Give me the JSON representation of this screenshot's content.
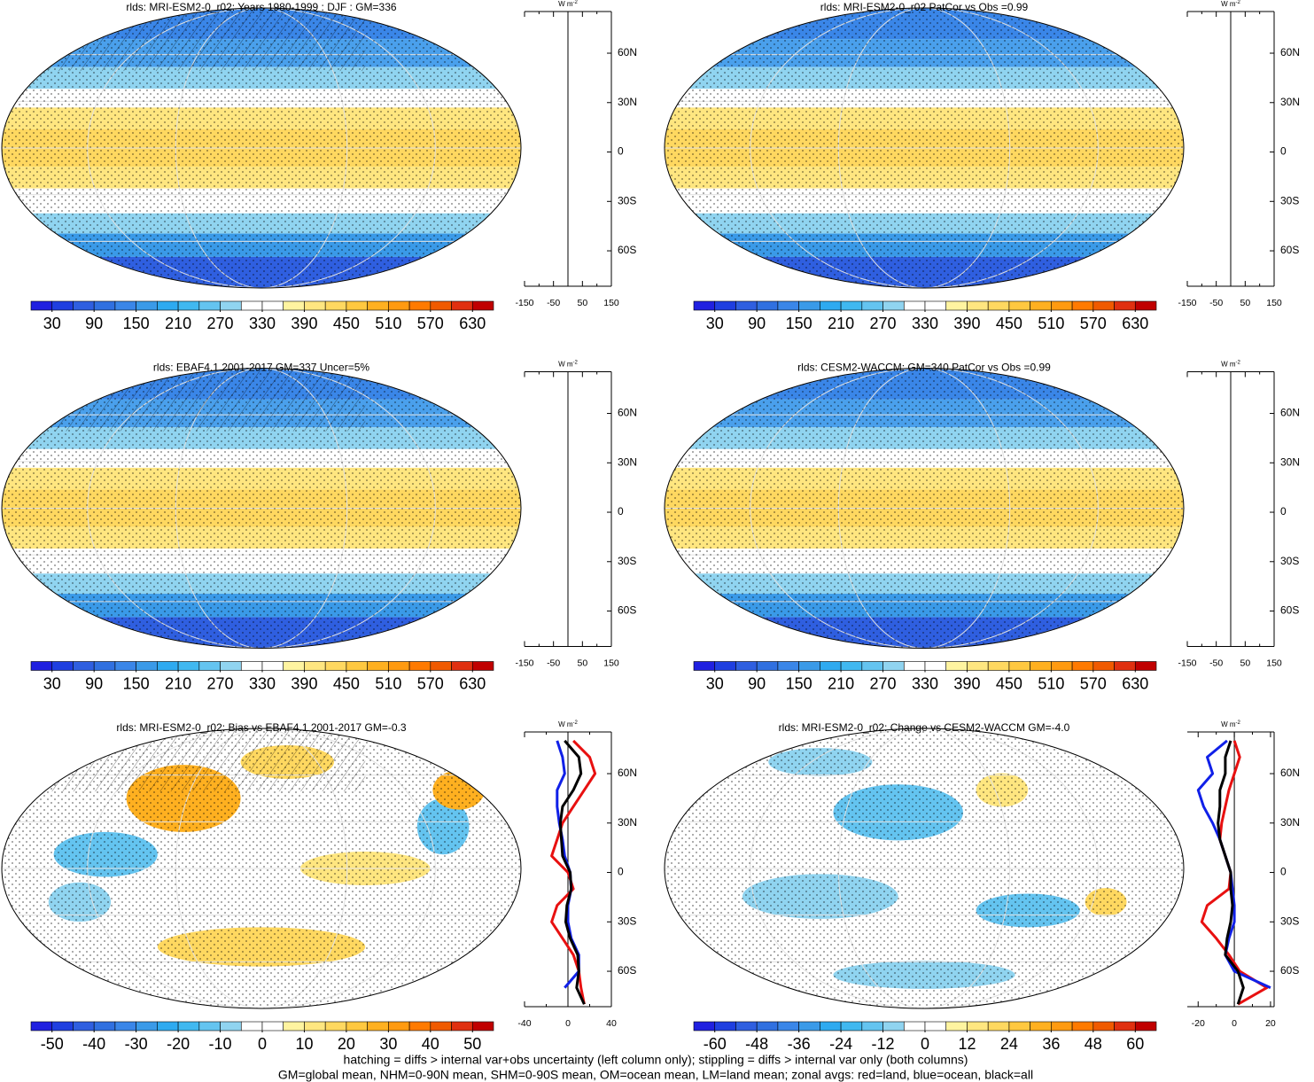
{
  "chart_data": [
    {
      "type": "map",
      "title": "rlds: MRI-ESM2-0_r02: Years 1980-1999 : DJF : GM=336",
      "colorbar": {
        "lim": [
          0,
          660
        ],
        "ticks": [
          30,
          90,
          150,
          210,
          270,
          330,
          390,
          450,
          510,
          570,
          630
        ],
        "colors": [
          "#2020e0",
          "#1f3fe0",
          "#2f5fe0",
          "#3070e0",
          "#3a86e8",
          "#3a9ae8",
          "#2eaaf0",
          "#40b8f0",
          "#64c4f0",
          "#90d4f0",
          "#ffffff",
          "#ffffff",
          "#fff4a0",
          "#ffe680",
          "#ffd860",
          "#ffc840",
          "#ffb020",
          "#ff9a10",
          "#ff7a00",
          "#f05a00",
          "#e03010",
          "#c00000"
        ]
      },
      "profile": {
        "type": "line",
        "unit": "W m",
        "unit_exp": "-2",
        "xlim": [
          -150,
          150
        ],
        "xticks": [
          -150,
          -50,
          50,
          150
        ],
        "ylim": [
          -81.5,
          85.3
        ],
        "yticks": [
          {
            "value": 60,
            "label": "60N"
          },
          {
            "value": 30,
            "label": "30N"
          },
          0,
          {
            "value": -30,
            "label": "30S"
          },
          {
            "value": -60,
            "label": "60S"
          }
        ]
      }
    },
    {
      "type": "map",
      "title": "rlds: MRI-ESM2-0_r02 PatCor vs Obs =0.99",
      "colorbar": {
        "lim": [
          0,
          660
        ],
        "ticks": [
          30,
          90,
          150,
          210,
          270,
          330,
          390,
          450,
          510,
          570,
          630
        ],
        "colors": [
          "#2020e0",
          "#1f3fe0",
          "#2f5fe0",
          "#3070e0",
          "#3a86e8",
          "#3a9ae8",
          "#2eaaf0",
          "#40b8f0",
          "#64c4f0",
          "#90d4f0",
          "#ffffff",
          "#ffffff",
          "#fff4a0",
          "#ffe680",
          "#ffd860",
          "#ffc840",
          "#ffb020",
          "#ff9a10",
          "#ff7a00",
          "#f05a00",
          "#e03010",
          "#c00000"
        ]
      },
      "profile": {
        "type": "line",
        "unit": "W m",
        "unit_exp": "-2",
        "xlim": [
          -150,
          150
        ],
        "xticks": [
          -150,
          -50,
          50,
          150
        ],
        "ylim": [
          -81.5,
          85.3
        ],
        "yticks": [
          {
            "value": 60,
            "label": "60N"
          },
          {
            "value": 30,
            "label": "30N"
          },
          0,
          {
            "value": -30,
            "label": "30S"
          },
          {
            "value": -60,
            "label": "60S"
          }
        ]
      }
    },
    {
      "type": "map",
      "title": "rlds: EBAF4.1 2001-2017 GM=337 Uncer=5%",
      "colorbar": {
        "lim": [
          0,
          660
        ],
        "ticks": [
          30,
          90,
          150,
          210,
          270,
          330,
          390,
          450,
          510,
          570,
          630
        ],
        "colors": [
          "#2020e0",
          "#1f3fe0",
          "#2f5fe0",
          "#3070e0",
          "#3a86e8",
          "#3a9ae8",
          "#2eaaf0",
          "#40b8f0",
          "#64c4f0",
          "#90d4f0",
          "#ffffff",
          "#ffffff",
          "#fff4a0",
          "#ffe680",
          "#ffd860",
          "#ffc840",
          "#ffb020",
          "#ff9a10",
          "#ff7a00",
          "#f05a00",
          "#e03010",
          "#c00000"
        ]
      },
      "profile": {
        "type": "line",
        "unit": "W m",
        "unit_exp": "-2",
        "xlim": [
          -150,
          150
        ],
        "xticks": [
          -150,
          -50,
          50,
          150
        ],
        "ylim": [
          -81.5,
          85.3
        ],
        "yticks": [
          {
            "value": 60,
            "label": "60N"
          },
          {
            "value": 30,
            "label": "30N"
          },
          0,
          {
            "value": -30,
            "label": "30S"
          },
          {
            "value": -60,
            "label": "60S"
          }
        ]
      }
    },
    {
      "type": "map",
      "title": "rlds: CESM2-WACCM: GM=340 PatCor vs Obs =0.99",
      "colorbar": {
        "lim": [
          0,
          660
        ],
        "ticks": [
          30,
          90,
          150,
          210,
          270,
          330,
          390,
          450,
          510,
          570,
          630
        ],
        "colors": [
          "#2020e0",
          "#1f3fe0",
          "#2f5fe0",
          "#3070e0",
          "#3a86e8",
          "#3a9ae8",
          "#2eaaf0",
          "#40b8f0",
          "#64c4f0",
          "#90d4f0",
          "#ffffff",
          "#ffffff",
          "#fff4a0",
          "#ffe680",
          "#ffd860",
          "#ffc840",
          "#ffb020",
          "#ff9a10",
          "#ff7a00",
          "#f05a00",
          "#e03010",
          "#c00000"
        ]
      },
      "profile": {
        "type": "line",
        "unit": "W m",
        "unit_exp": "-2",
        "xlim": [
          -150,
          150
        ],
        "xticks": [
          -150,
          -50,
          50,
          150
        ],
        "ylim": [
          -81.5,
          85.3
        ],
        "yticks": [
          {
            "value": 60,
            "label": "60N"
          },
          {
            "value": 30,
            "label": "30N"
          },
          0,
          {
            "value": -30,
            "label": "30S"
          },
          {
            "value": -60,
            "label": "60S"
          }
        ]
      }
    },
    {
      "type": "map",
      "title": "rlds: MRI-ESM2-0_r02: Bias vs EBAF4.1 2001-2017 GM=-0.3",
      "colorbar": {
        "lim": [
          -55,
          55
        ],
        "ticks": [
          -50,
          -40,
          -30,
          -20,
          -10,
          0,
          10,
          20,
          30,
          40,
          50
        ],
        "colors": [
          "#2020e0",
          "#1f3fe0",
          "#2f5fe0",
          "#3070e0",
          "#3a86e8",
          "#3a9ae8",
          "#2eaaf0",
          "#40b8f0",
          "#64c4f0",
          "#90d4f0",
          "#ffffff",
          "#ffffff",
          "#fff4a0",
          "#ffe680",
          "#ffd860",
          "#ffc840",
          "#ffb020",
          "#ff9a10",
          "#ff7a00",
          "#f05a00",
          "#e03010",
          "#c00000"
        ]
      },
      "profile": {
        "type": "line",
        "unit": "W m",
        "unit_exp": "-2",
        "xlim": [
          -40,
          40
        ],
        "xticks": [
          -40,
          0,
          40
        ],
        "ylim": [
          -81.5,
          85.3
        ],
        "yticks": [
          {
            "value": 60,
            "label": "60N"
          },
          {
            "value": 30,
            "label": "30N"
          },
          0,
          {
            "value": -30,
            "label": "30S"
          },
          {
            "value": -60,
            "label": "60S"
          }
        ],
        "lat": [
          -80,
          -70,
          -60,
          -50,
          -40,
          -30,
          -20,
          -10,
          0,
          10,
          20,
          30,
          40,
          50,
          60,
          70,
          80
        ],
        "series": [
          {
            "color": "#e81010",
            "values": [
              15,
              12,
              10,
              5,
              -5,
              -15,
              -10,
              5,
              0,
              -15,
              -10,
              -5,
              5,
              15,
              25,
              20,
              5
            ]
          },
          {
            "color": "#1020e8",
            "values": [
              null,
              -3,
              10,
              10,
              3,
              0,
              0,
              3,
              2,
              -3,
              -5,
              -8,
              -10,
              -10,
              -3,
              -5,
              -10
            ]
          },
          {
            "color": "#000000",
            "values": [
              15,
              8,
              10,
              9,
              2,
              -2,
              -1,
              3,
              2,
              -5,
              -6,
              -7,
              -5,
              5,
              12,
              10,
              -3
            ]
          }
        ]
      }
    },
    {
      "type": "map",
      "title": "rlds: MRI-ESM2-0_r02: Change vs CESM2-WACCM GM=-4.0",
      "colorbar": {
        "lim": [
          -66,
          66
        ],
        "ticks": [
          -60,
          -48,
          -36,
          -24,
          -12,
          0,
          12,
          24,
          36,
          48,
          60
        ],
        "colors": [
          "#2020e0",
          "#1f3fe0",
          "#2f5fe0",
          "#3070e0",
          "#3a86e8",
          "#3a9ae8",
          "#2eaaf0",
          "#40b8f0",
          "#64c4f0",
          "#90d4f0",
          "#ffffff",
          "#ffffff",
          "#fff4a0",
          "#ffe680",
          "#ffd860",
          "#ffc840",
          "#ffb020",
          "#ff9a10",
          "#ff7a00",
          "#f05a00",
          "#e03010",
          "#c00000"
        ]
      },
      "profile": {
        "type": "line",
        "unit": "W m",
        "unit_exp": "-2",
        "xlim": [
          -26,
          22
        ],
        "xticks": [
          -20,
          0,
          20
        ],
        "ylim": [
          -81.5,
          85.3
        ],
        "yticks": [
          {
            "value": 60,
            "label": "60N"
          },
          {
            "value": 30,
            "label": "30N"
          },
          0,
          {
            "value": -30,
            "label": "30S"
          },
          {
            "value": -60,
            "label": "60S"
          }
        ],
        "lat": [
          -80,
          -70,
          -60,
          -50,
          -40,
          -30,
          -20,
          -10,
          0,
          10,
          20,
          30,
          40,
          50,
          60,
          70,
          80
        ],
        "series": [
          {
            "color": "#e81010",
            "values": [
              2,
              18,
              3,
              -3,
              -10,
              -18,
              -15,
              -3,
              -2,
              -5,
              -8,
              -7,
              -5,
              -3,
              0,
              3,
              0
            ]
          },
          {
            "color": "#1020e8",
            "values": [
              null,
              20,
              0,
              -5,
              -3,
              0,
              0,
              -1,
              -2,
              -5,
              -8,
              -12,
              -17,
              -20,
              -12,
              -15,
              -4
            ]
          },
          {
            "color": "#000000",
            "values": [
              2,
              5,
              2,
              -5,
              -4,
              -2,
              -1,
              -2,
              -2,
              -5,
              -8,
              -9,
              -8,
              -8,
              -5,
              -5,
              -2
            ]
          }
        ]
      }
    }
  ],
  "notes": [
    "hatching = diffs > internal var+obs uncertainty (left column only); stippling = diffs > internal var only (both columns)",
    "GM=global mean, NHM=0-90N mean, SHM=0-90S mean, OM=ocean mean, LM=land mean; zonal avgs: red=land, blue=ocean, black=all"
  ]
}
